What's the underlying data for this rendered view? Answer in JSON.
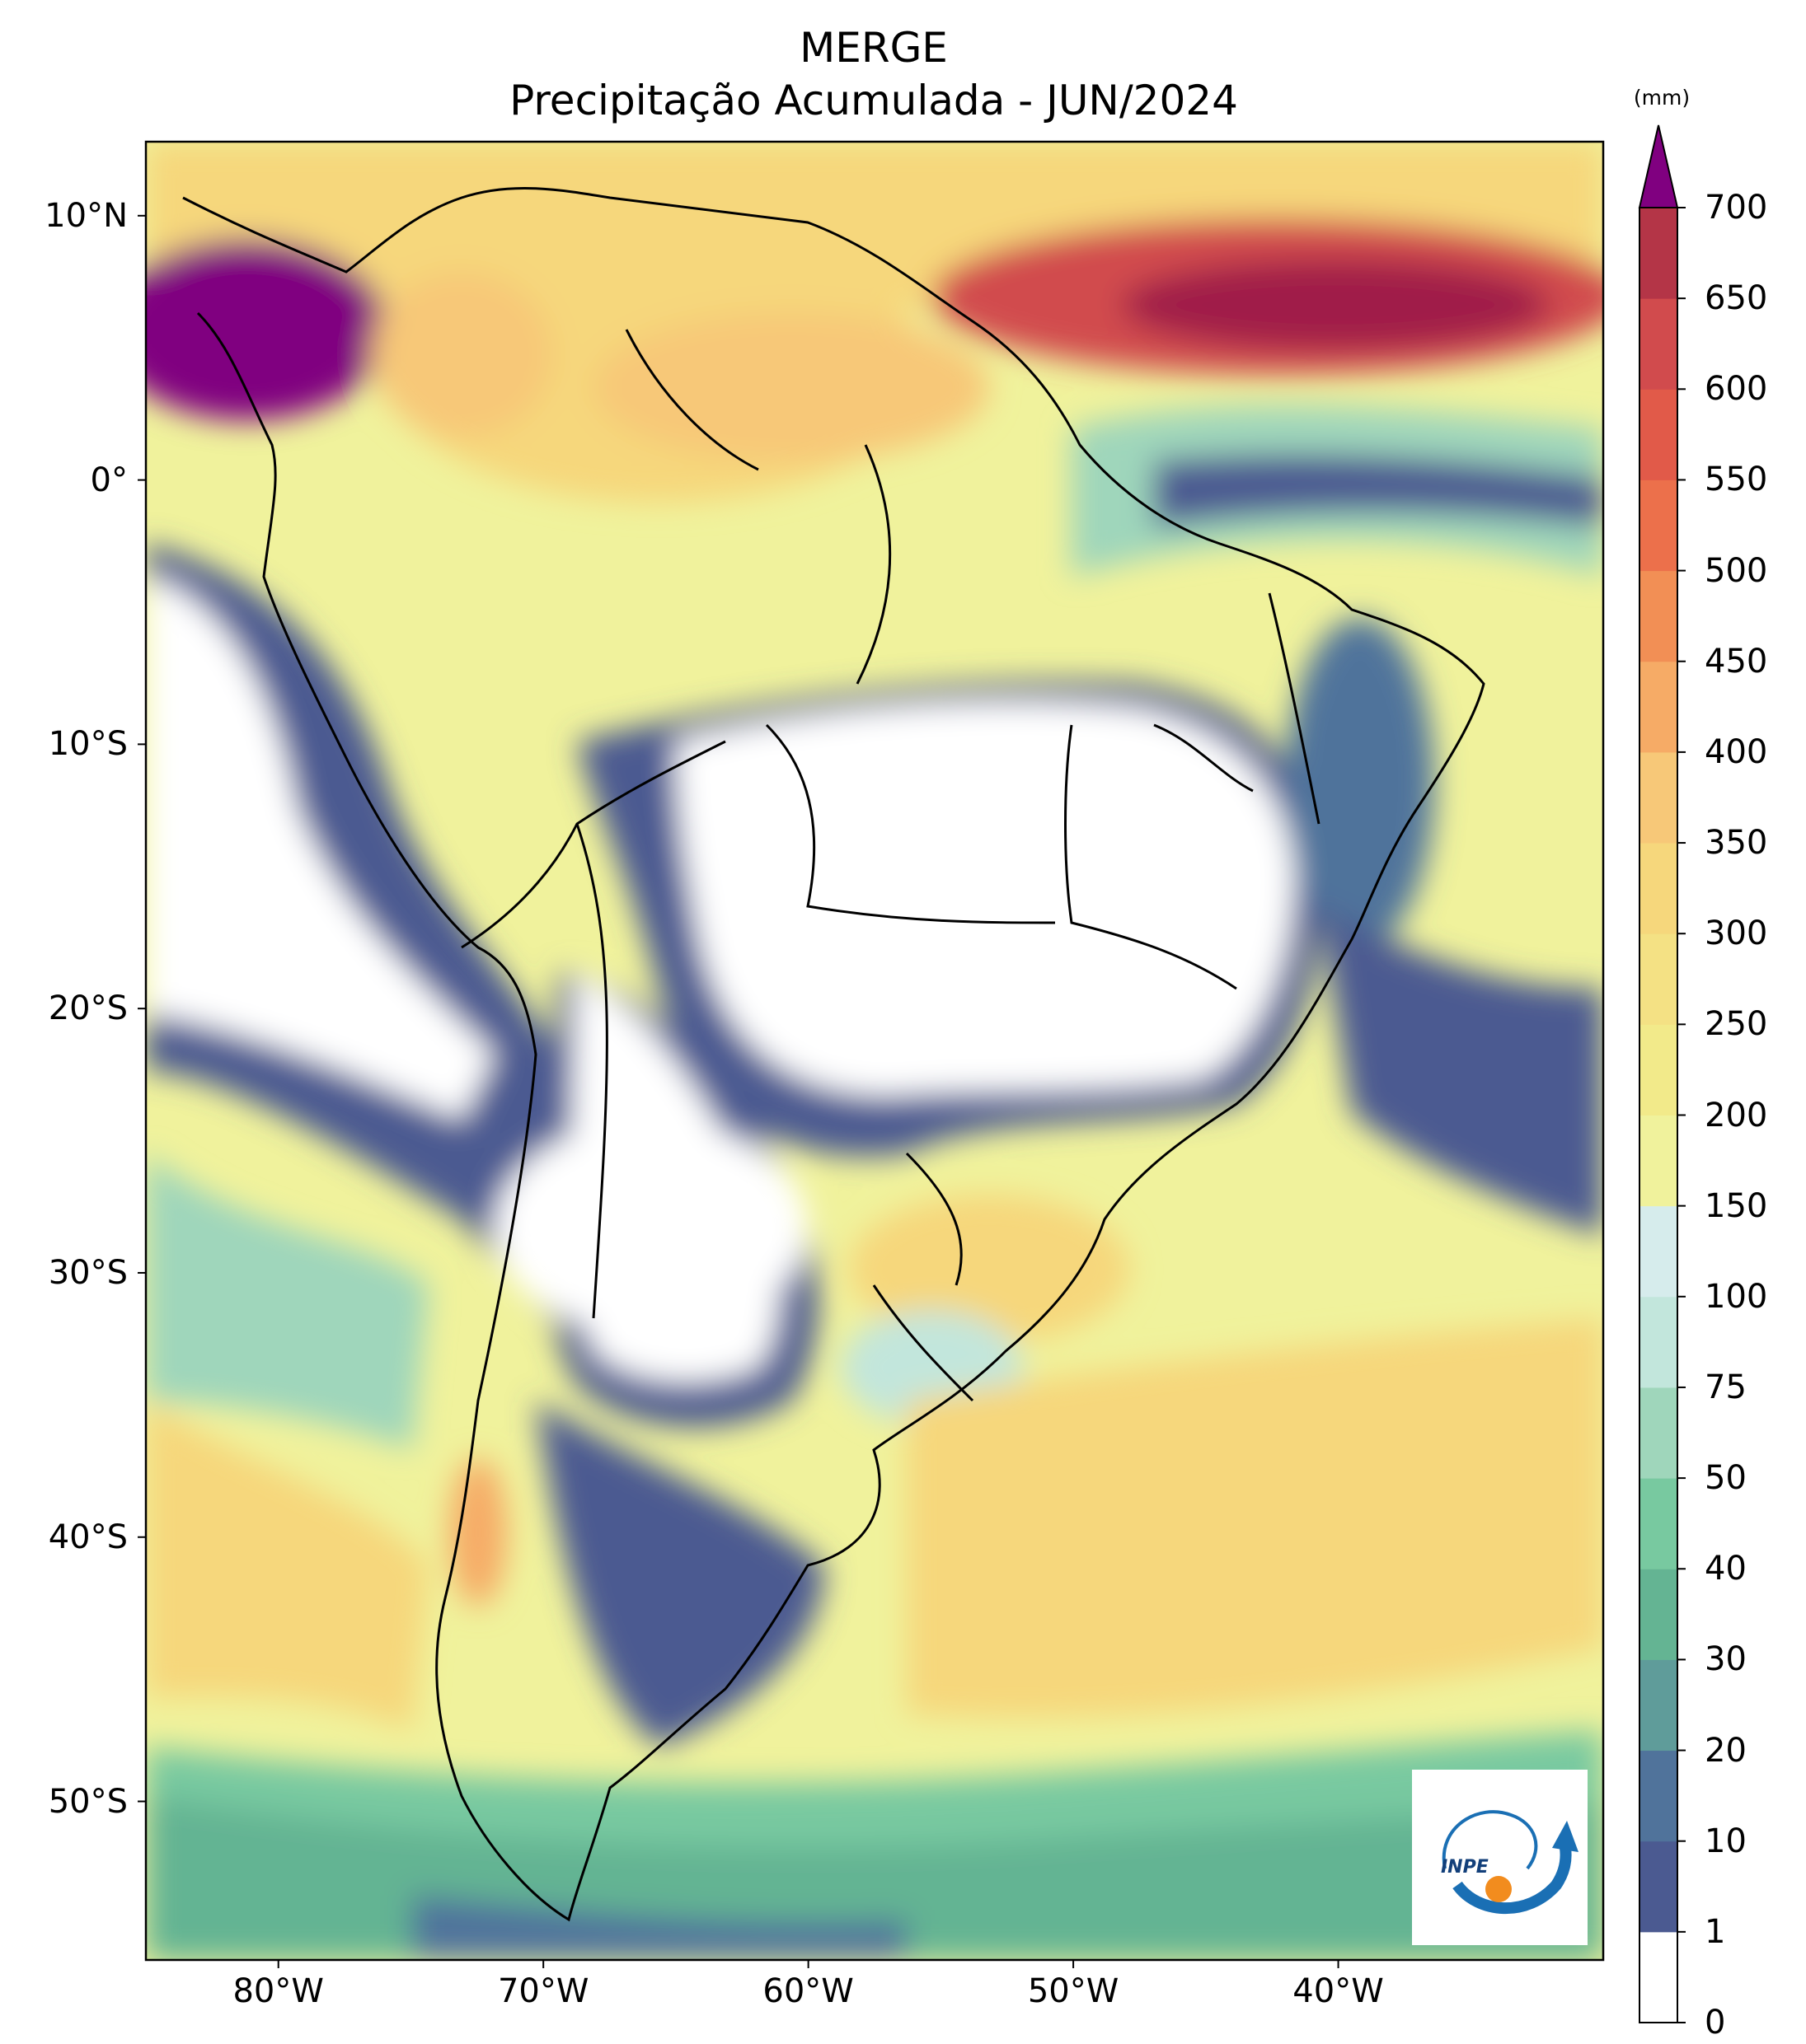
{
  "title_line1": "MERGE",
  "title_line2": "Precipitação Acumulada - JUN/2024",
  "unit": "(mm)",
  "lat_labels": [
    {
      "lat": 10,
      "label": "10°N"
    },
    {
      "lat": 0,
      "label": "0°"
    },
    {
      "lat": -10,
      "label": "10°S"
    },
    {
      "lat": -20,
      "label": "20°S"
    },
    {
      "lat": -30,
      "label": "30°S"
    },
    {
      "lat": -40,
      "label": "40°S"
    },
    {
      "lat": -50,
      "label": "50°S"
    }
  ],
  "lon_labels": [
    {
      "lon": -80,
      "label": "80°W"
    },
    {
      "lon": -70,
      "label": "70°W"
    },
    {
      "lon": -60,
      "label": "60°W"
    },
    {
      "lon": -50,
      "label": "50°W"
    },
    {
      "lon": -40,
      "label": "40°W"
    }
  ],
  "extent": {
    "lon_min": -85,
    "lon_max": -30,
    "lat_min": -56,
    "lat_max": 12.8
  },
  "colorbar": {
    "levels": [
      "0",
      "1",
      "10",
      "20",
      "30",
      "40",
      "50",
      "75",
      "100",
      "150",
      "200",
      "250",
      "300",
      "350",
      "400",
      "450",
      "500",
      "550",
      "600",
      "650",
      "700"
    ],
    "colors": [
      "#ffffff",
      "#4b5a91",
      "#50739b",
      "#5f9c9a",
      "#64b493",
      "#78c9a0",
      "#9fd6bb",
      "#c2e6dc",
      "#d6ecec",
      "#f0f29c",
      "#f2ea8a",
      "#f4e184",
      "#f6d77c",
      "#f7c878",
      "#f6ab66",
      "#f28f55",
      "#ec704b",
      "#e15a49",
      "#d14b4d",
      "#b43547",
      "#a01e48"
    ],
    "extend_color": "#800080"
  },
  "logo": {
    "text": "INPE",
    "icon": "inpe-logo-icon"
  }
}
